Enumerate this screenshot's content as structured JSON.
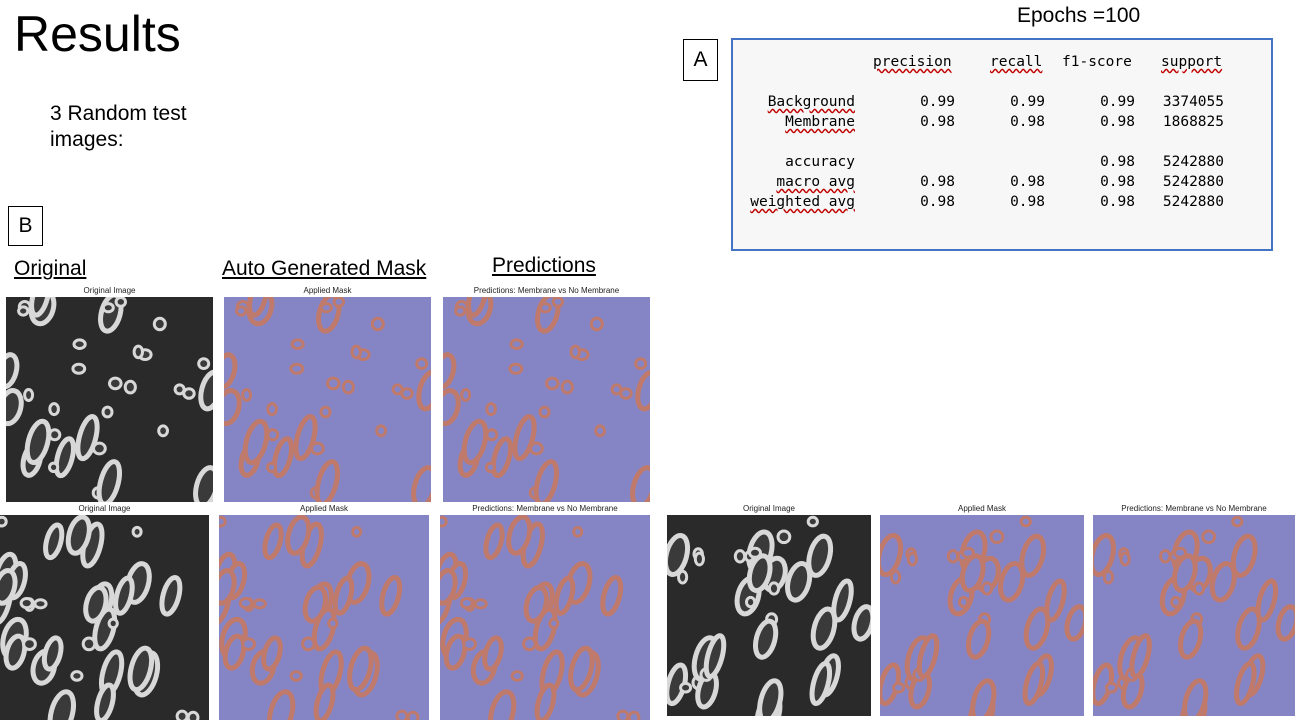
{
  "slide": {
    "title": "Results",
    "subtitle": "3 Random test images:",
    "epochs": "Epochs =100",
    "label_a": "A",
    "label_b": "B"
  },
  "report": {
    "headers": [
      "precision",
      "recall",
      "f1-score",
      "support"
    ],
    "rows": [
      {
        "label": "Background",
        "precision": "0.99",
        "recall": "0.99",
        "f1": "0.99",
        "support": "3374055"
      },
      {
        "label": "Membrane",
        "precision": "0.98",
        "recall": "0.98",
        "f1": "0.98",
        "support": "1868825"
      },
      {
        "label": "accuracy",
        "precision": "",
        "recall": "",
        "f1": "0.98",
        "support": "5242880"
      },
      {
        "label": "macro avg",
        "precision": "0.98",
        "recall": "0.98",
        "f1": "0.98",
        "support": "5242880"
      },
      {
        "label": "weighted avg",
        "precision": "0.98",
        "recall": "0.98",
        "f1": "0.98",
        "support": "5242880"
      }
    ]
  },
  "columns": {
    "original": "Original",
    "mask": "Auto Generated Mask",
    "predictions": "Predictions"
  },
  "panel_titles": {
    "original": "Original Image",
    "mask": "Applied Mask",
    "prediction": "Predictions: Membrane vs No Membrane"
  },
  "colors": {
    "report_border": "#4472C4",
    "mask_background": "#8585c6",
    "mask_membrane": "#c07a6c",
    "spellcheck": "#c00000"
  }
}
